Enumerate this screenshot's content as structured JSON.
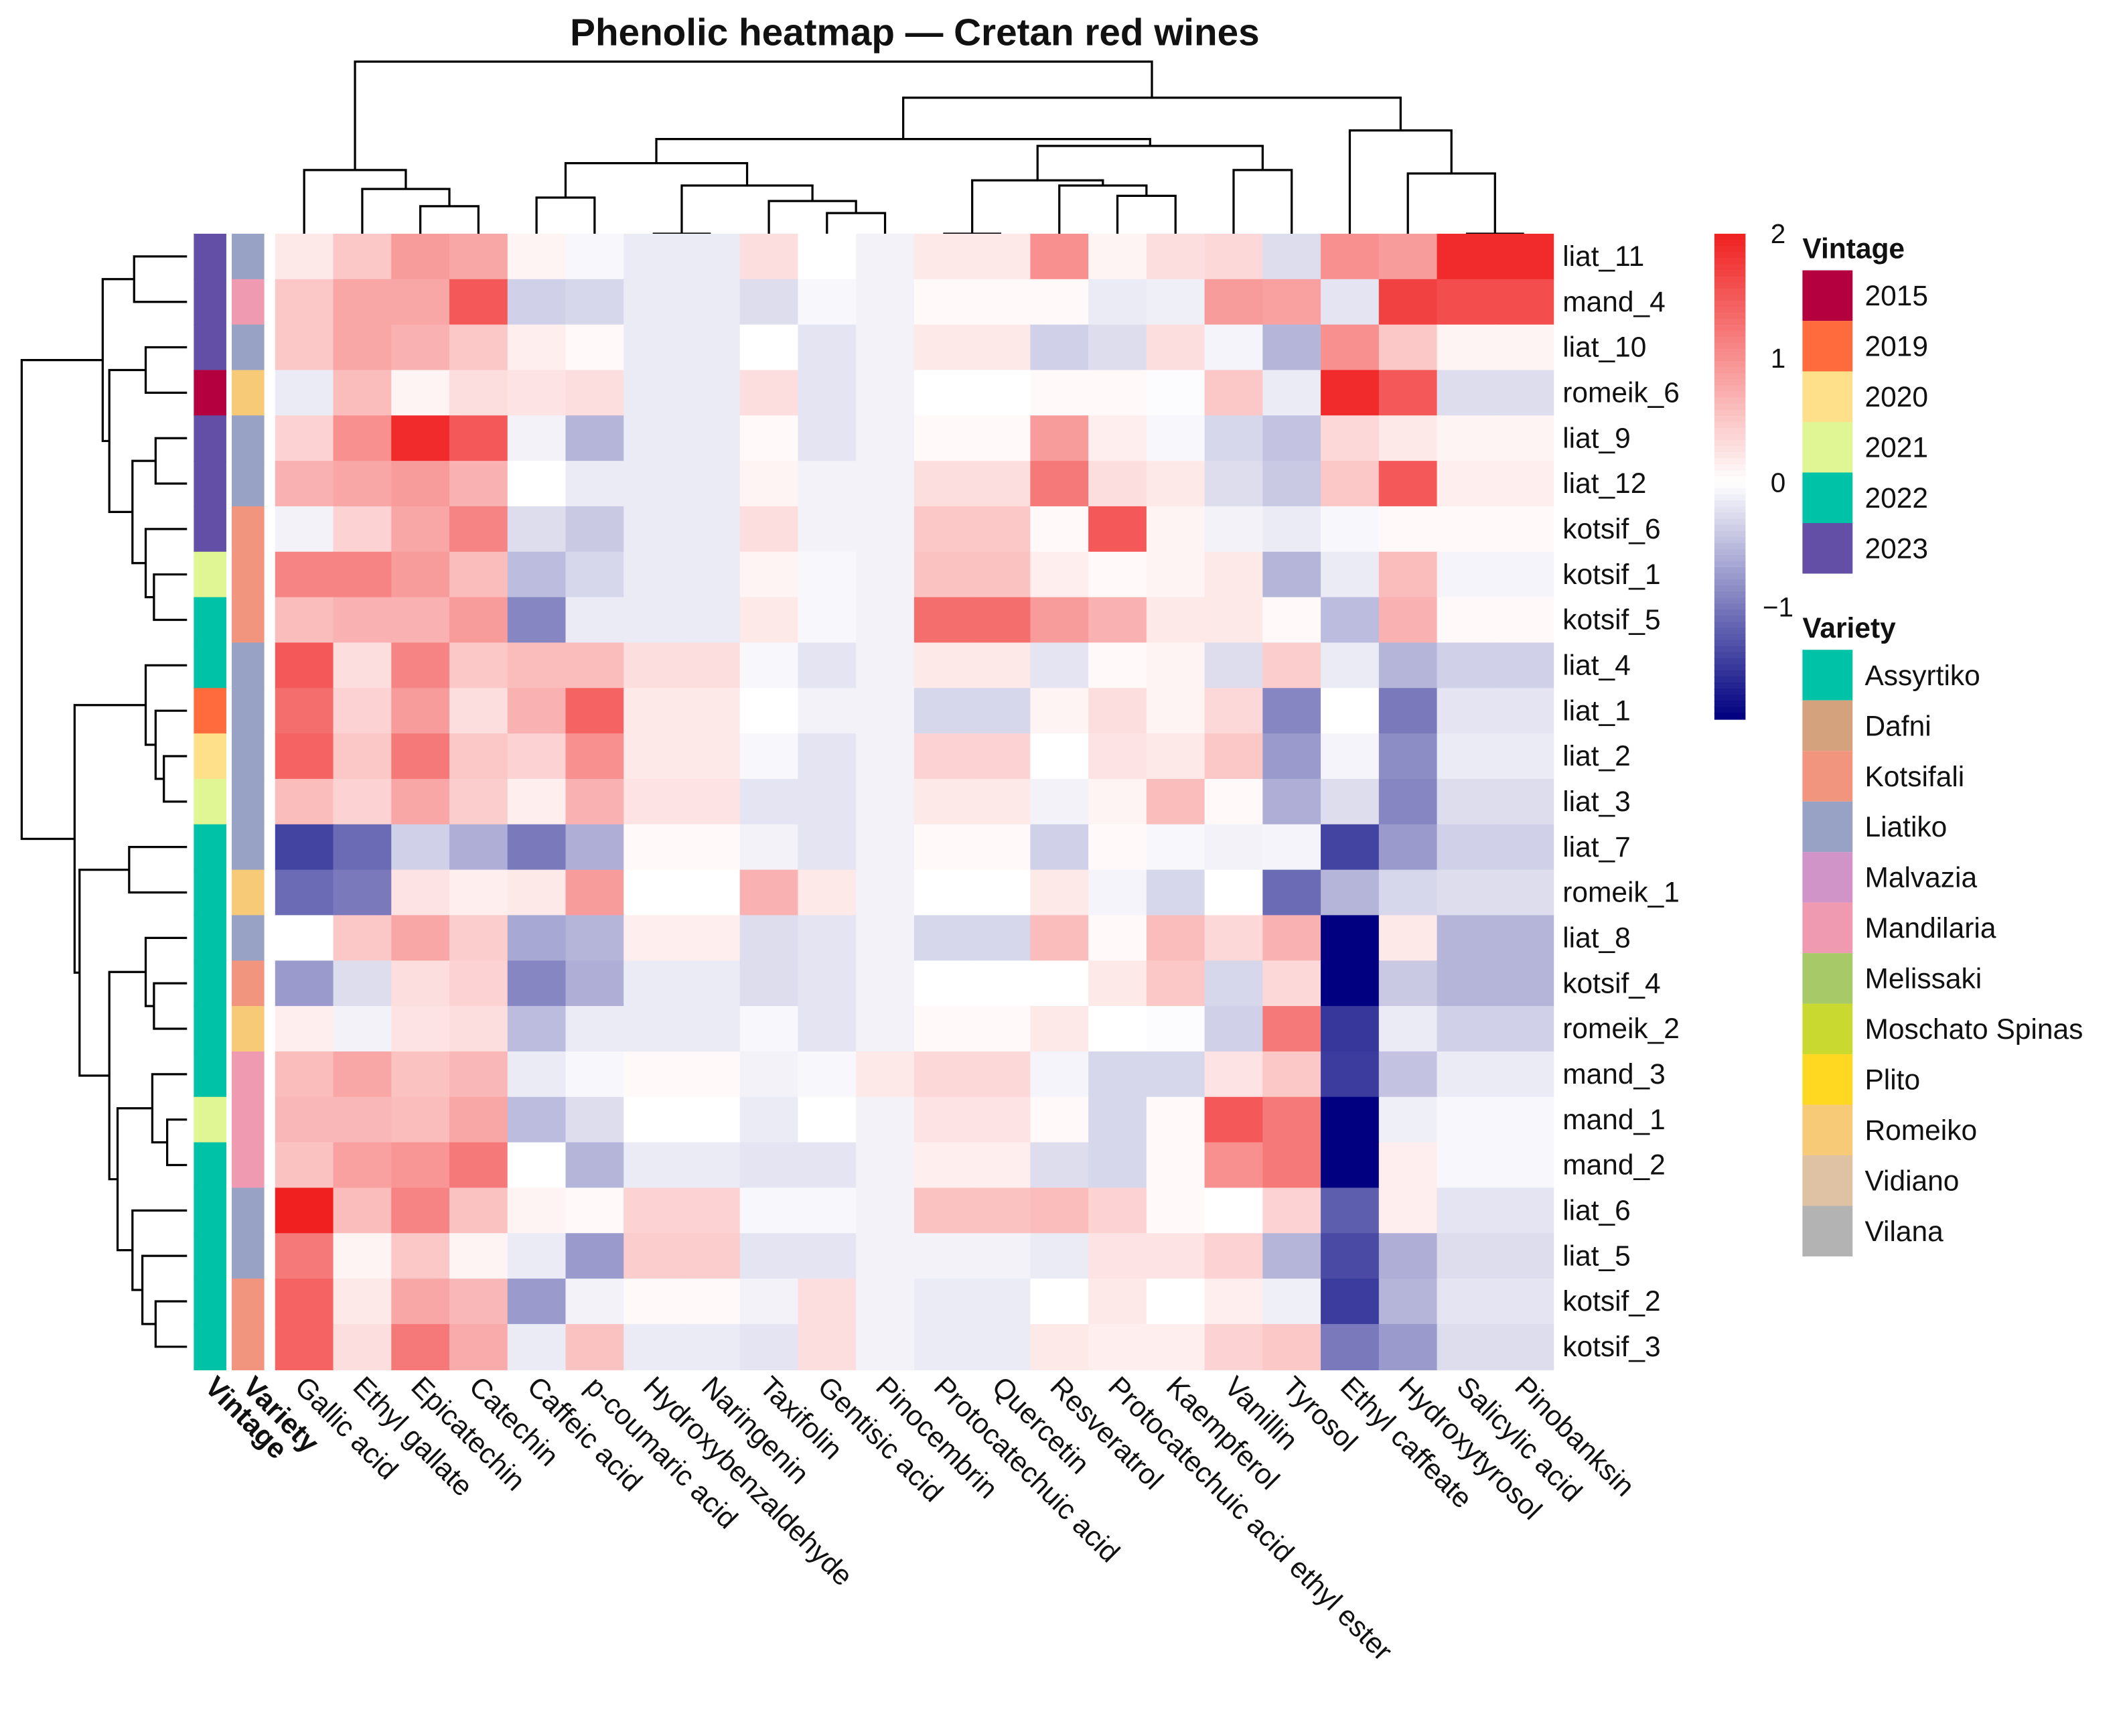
{
  "chart_data": {
    "type": "heatmap",
    "title": "Phenolic heatmap — Cretan red wines",
    "rows": [
      "liat_11",
      "mand_4",
      "liat_10",
      "romeik_6",
      "liat_9",
      "liat_12",
      "kotsif_6",
      "kotsif_1",
      "kotsif_5",
      "liat_4",
      "liat_1",
      "liat_2",
      "liat_3",
      "liat_7",
      "romeik_1",
      "liat_8",
      "kotsif_4",
      "romeik_2",
      "mand_3",
      "mand_1",
      "mand_2",
      "liat_6",
      "liat_5",
      "kotsif_2",
      "kotsif_3"
    ],
    "columns": [
      "Gallic acid",
      "Ethyl gallate",
      "Epicatechin",
      "Catechin",
      "Caffeic acid",
      "p-coumaric acid",
      "Hydroxybenzaldehyde",
      "Naringenin",
      "Taxifolin",
      "Gentisic acid",
      "Pinocembrin",
      "Protocatechuic acid",
      "Quercetin",
      "Resveratrol",
      "Protocatechuic acid ethyl ester",
      "Kaempferol",
      "Vanillin",
      "Tyrosol",
      "Ethyl caffeate",
      "Hydroxytyrosol",
      "Salicylic acid",
      "Pinobanksin"
    ],
    "values": [
      [
        0.2,
        0.5,
        0.9,
        0.8,
        0.1,
        -0.05,
        -0.15,
        -0.15,
        0.3,
        0.0,
        -0.1,
        0.2,
        0.2,
        1.0,
        0.1,
        0.3,
        0.35,
        -0.25,
        1.0,
        0.9,
        1.9,
        1.9
      ],
      [
        0.5,
        0.8,
        0.8,
        1.5,
        -0.35,
        -0.3,
        -0.15,
        -0.15,
        -0.25,
        -0.05,
        -0.1,
        0.05,
        0.05,
        0.05,
        -0.15,
        -0.12,
        0.9,
        0.85,
        -0.2,
        1.7,
        1.6,
        1.6
      ],
      [
        0.5,
        0.8,
        0.7,
        0.5,
        0.15,
        0.05,
        -0.15,
        -0.15,
        0.0,
        -0.2,
        -0.1,
        0.2,
        0.2,
        -0.35,
        -0.25,
        0.3,
        -0.08,
        -0.55,
        1.0,
        0.5,
        0.1,
        0.1
      ],
      [
        -0.15,
        0.6,
        0.1,
        0.3,
        0.25,
        0.3,
        -0.15,
        -0.15,
        0.3,
        -0.2,
        -0.1,
        0.0,
        0.0,
        0.05,
        0.05,
        -0.02,
        0.5,
        -0.15,
        1.9,
        1.5,
        -0.25,
        -0.25
      ],
      [
        0.4,
        1.0,
        1.9,
        1.5,
        -0.1,
        -0.55,
        -0.15,
        -0.15,
        0.05,
        -0.2,
        -0.1,
        0.05,
        0.05,
        0.9,
        0.15,
        -0.05,
        -0.3,
        -0.45,
        0.35,
        0.2,
        0.1,
        0.1
      ],
      [
        0.7,
        0.8,
        0.9,
        0.7,
        0.0,
        -0.15,
        -0.15,
        -0.15,
        0.1,
        -0.1,
        -0.1,
        0.3,
        0.3,
        1.2,
        0.3,
        0.2,
        -0.25,
        -0.4,
        0.5,
        1.5,
        0.15,
        0.15
      ],
      [
        -0.1,
        0.4,
        0.8,
        1.1,
        -0.25,
        -0.4,
        -0.15,
        -0.15,
        0.3,
        -0.1,
        -0.1,
        0.5,
        0.5,
        0.05,
        1.5,
        0.1,
        -0.1,
        -0.15,
        -0.05,
        0.05,
        0.05,
        0.05
      ],
      [
        1.1,
        1.1,
        0.9,
        0.6,
        -0.5,
        -0.3,
        -0.15,
        -0.15,
        0.1,
        -0.05,
        -0.1,
        0.55,
        0.55,
        0.15,
        0.05,
        0.1,
        0.2,
        -0.55,
        -0.15,
        0.6,
        -0.08,
        -0.08
      ],
      [
        0.6,
        0.7,
        0.7,
        0.9,
        -0.9,
        -0.15,
        -0.15,
        -0.15,
        0.2,
        -0.05,
        -0.1,
        1.3,
        1.3,
        0.9,
        0.7,
        0.2,
        0.2,
        0.05,
        -0.5,
        0.7,
        0.05,
        0.05
      ],
      [
        1.5,
        0.3,
        1.1,
        0.5,
        0.6,
        0.6,
        0.3,
        0.3,
        -0.05,
        -0.2,
        -0.1,
        0.2,
        0.2,
        -0.2,
        0.05,
        0.1,
        -0.25,
        0.45,
        -0.15,
        -0.55,
        -0.35,
        -0.35
      ],
      [
        1.3,
        0.4,
        0.9,
        0.3,
        0.7,
        1.4,
        0.2,
        0.2,
        0.0,
        -0.1,
        -0.1,
        -0.3,
        -0.3,
        0.1,
        0.3,
        0.1,
        0.35,
        -0.9,
        0.0,
        -1.0,
        -0.2,
        -0.2
      ],
      [
        1.4,
        0.5,
        1.2,
        0.5,
        0.4,
        1.0,
        0.2,
        0.2,
        -0.05,
        -0.2,
        -0.1,
        0.4,
        0.4,
        0.0,
        0.25,
        0.2,
        0.5,
        -0.75,
        -0.08,
        -0.85,
        -0.15,
        -0.15
      ],
      [
        0.6,
        0.4,
        0.8,
        0.45,
        0.15,
        0.7,
        0.25,
        0.25,
        -0.2,
        -0.2,
        -0.1,
        0.2,
        0.2,
        -0.1,
        0.1,
        0.6,
        0.05,
        -0.6,
        -0.25,
        -0.9,
        -0.25,
        -0.25
      ],
      [
        -1.4,
        -1.1,
        -0.35,
        -0.6,
        -1.0,
        -0.6,
        0.05,
        0.05,
        -0.1,
        -0.2,
        -0.1,
        0.05,
        0.05,
        -0.35,
        0.05,
        -0.05,
        -0.1,
        -0.08,
        -1.4,
        -0.75,
        -0.35,
        -0.35
      ],
      [
        -1.1,
        -1.0,
        0.25,
        0.15,
        0.2,
        0.9,
        0.0,
        0.0,
        0.7,
        0.2,
        -0.1,
        0.0,
        0.0,
        0.2,
        -0.08,
        -0.3,
        0.0,
        -1.1,
        -0.55,
        -0.3,
        -0.25,
        -0.25
      ],
      [
        0.0,
        0.5,
        0.8,
        0.45,
        -0.65,
        -0.55,
        0.15,
        0.15,
        -0.25,
        -0.2,
        -0.1,
        -0.3,
        -0.3,
        0.6,
        0.05,
        0.6,
        0.35,
        0.7,
        -1.9,
        0.2,
        -0.55,
        -0.55
      ],
      [
        -0.75,
        -0.25,
        0.3,
        0.4,
        -0.9,
        -0.6,
        -0.15,
        -0.15,
        -0.25,
        -0.2,
        -0.1,
        0.0,
        0.0,
        0.0,
        0.2,
        0.5,
        -0.3,
        0.35,
        -1.9,
        -0.4,
        -0.55,
        -0.55
      ],
      [
        0.15,
        -0.1,
        0.25,
        0.3,
        -0.5,
        -0.15,
        -0.15,
        -0.15,
        -0.05,
        -0.2,
        -0.1,
        0.05,
        0.05,
        0.2,
        0.0,
        -0.02,
        -0.35,
        1.2,
        -1.5,
        -0.15,
        -0.35,
        -0.35
      ],
      [
        0.6,
        0.8,
        0.55,
        0.65,
        -0.15,
        -0.05,
        0.05,
        0.05,
        -0.1,
        -0.05,
        0.2,
        0.35,
        0.35,
        -0.08,
        -0.3,
        -0.3,
        0.25,
        0.5,
        -1.45,
        -0.45,
        -0.15,
        -0.15
      ],
      [
        0.65,
        0.65,
        0.6,
        0.8,
        -0.5,
        -0.25,
        0.0,
        0.0,
        -0.15,
        0.0,
        -0.1,
        0.25,
        0.25,
        0.05,
        -0.3,
        0.05,
        1.5,
        1.2,
        -1.9,
        -0.12,
        -0.05,
        -0.05
      ],
      [
        0.55,
        0.85,
        0.95,
        1.2,
        0.0,
        -0.55,
        -0.15,
        -0.15,
        -0.2,
        -0.2,
        -0.1,
        0.15,
        0.15,
        -0.25,
        -0.3,
        0.05,
        1.0,
        1.2,
        -1.9,
        0.15,
        -0.05,
        -0.05
      ],
      [
        2.0,
        0.6,
        1.1,
        0.55,
        0.1,
        0.05,
        0.4,
        0.4,
        -0.05,
        -0.05,
        -0.1,
        0.55,
        0.55,
        0.6,
        0.4,
        0.05,
        0.0,
        0.4,
        -1.2,
        0.15,
        -0.2,
        -0.2
      ],
      [
        1.2,
        0.1,
        0.5,
        0.1,
        -0.15,
        -0.75,
        0.45,
        0.45,
        -0.2,
        -0.2,
        -0.1,
        -0.1,
        -0.1,
        -0.15,
        0.25,
        0.25,
        0.4,
        -0.55,
        -1.35,
        -0.6,
        -0.25,
        -0.25
      ],
      [
        1.4,
        0.2,
        0.8,
        0.65,
        -0.75,
        -0.1,
        0.05,
        0.05,
        -0.1,
        0.3,
        -0.1,
        -0.15,
        -0.15,
        0.0,
        0.2,
        0.0,
        0.15,
        -0.12,
        -1.45,
        -0.55,
        -0.2,
        -0.2
      ],
      [
        1.4,
        0.3,
        1.2,
        0.75,
        -0.15,
        0.55,
        -0.15,
        -0.15,
        -0.2,
        0.3,
        -0.1,
        -0.15,
        -0.15,
        0.2,
        0.15,
        0.15,
        0.4,
        0.5,
        -1.0,
        -0.75,
        -0.25,
        -0.25
      ]
    ],
    "color_scale": {
      "min": -1.9,
      "max": 2,
      "low_color": "#000080",
      "mid_color": "#FFFFFF",
      "high_color": "#F02020",
      "ticks": [
        2,
        1,
        0,
        -1
      ],
      "tick_labels": [
        "2",
        "1",
        "0",
        "−1"
      ]
    },
    "row_annotations": {
      "vintage_label": "Vintage",
      "variety_label": "Variety",
      "vintage": [
        "2023",
        "2023",
        "2023",
        "2015",
        "2023",
        "2023",
        "2023",
        "2021",
        "2022",
        "2022",
        "2019",
        "2020",
        "2021",
        "2022",
        "2022",
        "2022",
        "2022",
        "2022",
        "2022",
        "2021",
        "2022",
        "2022",
        "2022",
        "2022",
        "2022"
      ],
      "variety": [
        "Liatiko",
        "Mandilaria",
        "Liatiko",
        "Romeiko",
        "Liatiko",
        "Liatiko",
        "Kotsifali",
        "Kotsifali",
        "Kotsifali",
        "Liatiko",
        "Liatiko",
        "Liatiko",
        "Liatiko",
        "Liatiko",
        "Romeiko",
        "Liatiko",
        "Kotsifali",
        "Romeiko",
        "Mandilaria",
        "Mandilaria",
        "Mandilaria",
        "Liatiko",
        "Liatiko",
        "Kotsifali",
        "Kotsifali"
      ]
    },
    "row_dendrogram": [
      [
        [
          0,
          1,
          0.32
        ],
        [
          [
            2,
            3,
            0.25
          ],
          [
            [
              4,
              5,
              0.19
            ],
            [
              6,
              [
                7,
                8,
                0.2
              ],
              0.25
            ],
            0.33
          ],
          0.47
        ],
        0.51
      ],
      [
        [
          9,
          [
            10,
            [
              11,
              12,
              0.14
            ],
            0.19
          ],
          0.25
        ],
        [
          [
            13,
            14,
            0.35
          ],
          [
            [
              15,
              [
                16,
                17,
                0.2
              ],
              0.25
            ],
            [
              [
                18,
                [
                  19,
                  20,
                  0.12
                ],
                0.21
              ],
              [
                21,
                [
                  22,
                  [
                    23,
                    24,
                    0.19
                  ],
                  0.27
                ],
                0.33
              ],
              0.42
            ],
            0.47
          ],
          0.65
        ],
        0.68
      ],
      1.0
    ],
    "col_dendrogram": [
      [
        0,
        [
          1,
          [
            2,
            3,
            0.16
          ],
          0.26
        ],
        0.37
      ],
      [
        [
          [
            [
              4,
              5,
              0.21
            ],
            [
              [
                6,
                7,
                0
              ],
              [
                8,
                [
                  9,
                  10,
                  0.12
                ],
                0.19
              ],
              0.28
            ],
            0.41
          ],
          [
            [
              [
                11,
                12,
                0
              ],
              [
                13,
                [
                  14,
                  15,
                  0.22
                ],
                0.28
              ],
              0.31
            ],
            [
              16,
              17,
              0.37
            ],
            0.51
          ],
          0.55
        ],
        [
          18,
          [
            19,
            [
              20,
              21,
              0
            ],
            0.35
          ],
          0.6
        ],
        0.79
      ],
      1.0
    ],
    "legend": {
      "vintage_title": "Vintage",
      "vintage": [
        {
          "label": "2015",
          "color": "#B5003F"
        },
        {
          "label": "2019",
          "color": "#FF6B3D"
        },
        {
          "label": "2020",
          "color": "#FEE08B"
        },
        {
          "label": "2021",
          "color": "#E0F593"
        },
        {
          "label": "2022",
          "color": "#00C2A6"
        },
        {
          "label": "2023",
          "color": "#634FA5"
        }
      ],
      "variety_title": "Variety",
      "variety": [
        {
          "label": "Assyrtiko",
          "color": "#00C2A6"
        },
        {
          "label": "Dafni",
          "color": "#D4A27C"
        },
        {
          "label": "Kotsifali",
          "color": "#F2957E"
        },
        {
          "label": "Liatiko",
          "color": "#98A2C5"
        },
        {
          "label": "Malvazia",
          "color": "#D094C8"
        },
        {
          "label": "Mandilaria",
          "color": "#F09AB1"
        },
        {
          "label": "Melissaki",
          "color": "#A7C968"
        },
        {
          "label": "Moschato Spinas",
          "color": "#C9D92F"
        },
        {
          "label": "Plito",
          "color": "#FFD822"
        },
        {
          "label": "Romeiko",
          "color": "#F7CA78"
        },
        {
          "label": "Vidiano",
          "color": "#DFC2A3"
        },
        {
          "label": "Vilana",
          "color": "#B3B3B3"
        }
      ]
    }
  }
}
